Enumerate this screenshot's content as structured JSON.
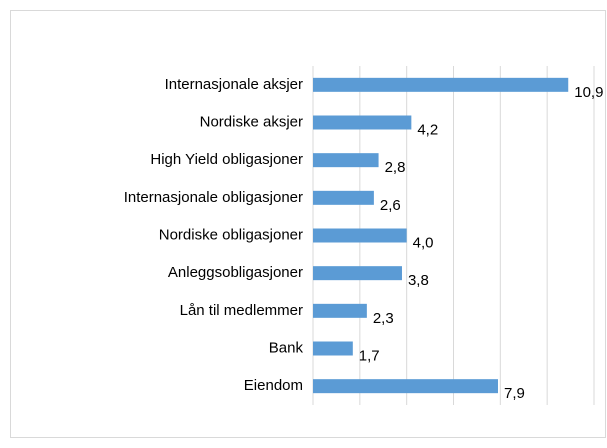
{
  "chart_data": {
    "type": "hbar",
    "categories": [
      "Internasjonale aksjer",
      "Nordiske aksjer",
      "High Yield obligasjoner",
      "Internasjonale obligasjoner",
      "Nordiske obligasjoner",
      "Anleggsobligasjoner",
      "Lån til medlemmer",
      "Bank",
      "Eiendom"
    ],
    "values": [
      10.9,
      4.2,
      2.8,
      2.6,
      4.0,
      3.8,
      2.3,
      1.7,
      7.9
    ],
    "value_labels": [
      "10,9",
      "4,2",
      "2,8",
      "2,6",
      "4,0",
      "3,8",
      "2,3",
      "1,7",
      "7,9"
    ],
    "color": "#5b9bd5",
    "xlim": [
      0,
      12
    ],
    "xticks": [
      0,
      2,
      4,
      6,
      8,
      10,
      12
    ],
    "grid": true
  }
}
